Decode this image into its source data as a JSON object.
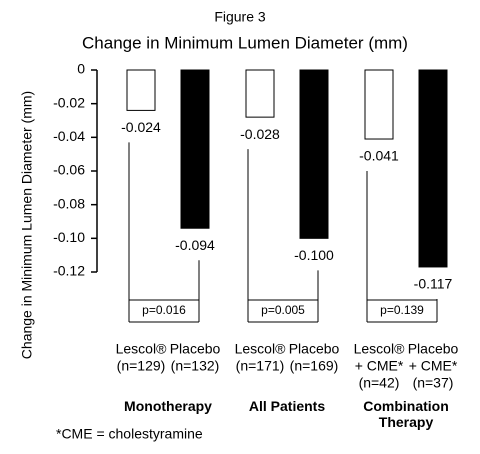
{
  "chart_data": {
    "type": "bar",
    "suptitle": "Figure 3",
    "title": "Change in Minimum Lumen Diameter (mm)",
    "ylabel": "Change in Minimum Lumen Diameter (mm)",
    "categories": [
      "Monotherapy",
      "All Patients",
      "Combination Therapy"
    ],
    "ylim": [
      0,
      -0.12
    ],
    "yticks": [
      0,
      -0.02,
      -0.04,
      -0.06,
      -0.08,
      {
        "value": -0.1,
        "label": "-0.10"
      },
      -0.12
    ],
    "series": [
      {
        "color": "#ffffff",
        "values": [
          -0.024,
          -0.028,
          -0.041
        ],
        "value_labels": [
          "-0.024",
          "-0.028",
          "-0.041"
        ],
        "bar_labels": [
          [
            "Lescol®",
            "(n=129)"
          ],
          [
            "Lescol®",
            "(n=171)"
          ],
          [
            "Lescol®",
            "+ CME*",
            "(n=42)"
          ]
        ]
      },
      {
        "color": "#000000",
        "values": [
          -0.094,
          -0.1,
          -0.117
        ],
        "value_labels": [
          "-0.094",
          "-0.100",
          "-0.117"
        ],
        "bar_labels": [
          [
            "Placebo",
            "(n=132)"
          ],
          [
            "Placebo",
            "(n=169)"
          ],
          [
            "Placebo",
            "+ CME*",
            "(n=37)"
          ]
        ]
      }
    ],
    "p_values": [
      "p=0.016",
      "p=0.005",
      "p=0.139"
    ],
    "footnote": "*CME = cholestyramine"
  }
}
